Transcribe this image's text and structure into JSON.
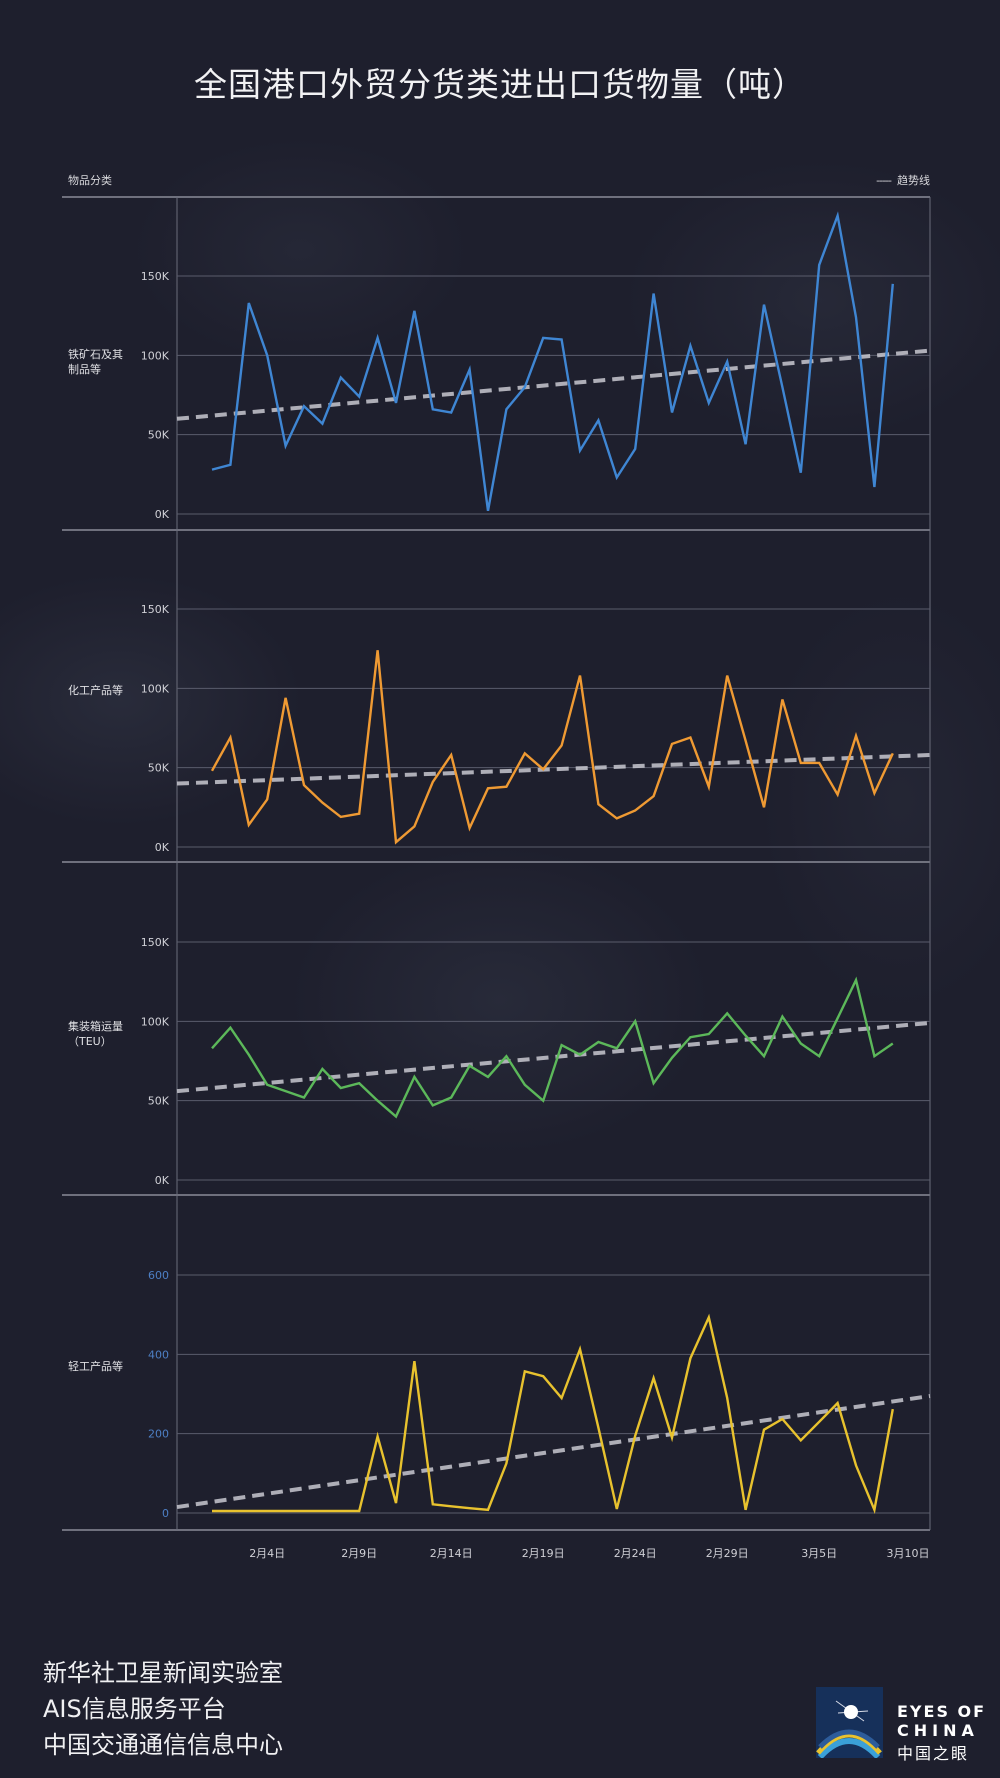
{
  "title": "全国港口外贸分货类进出口货物量（吨）",
  "header": {
    "category_label": "物品分类",
    "legend_label": "趋势线",
    "legend_swatch": "-----"
  },
  "colors": {
    "background": "#1e1f2d",
    "grid": "#5a5c6c",
    "trend": "#c8c8d0",
    "blue": "#3f86d3",
    "orange": "#ef9a33",
    "green": "#5cb85a",
    "yellow": "#e8c22e",
    "axis_label_blue": "#4d7fc4"
  },
  "chart_data": {
    "type": "line",
    "title": "全国港口外贸分货类进出口货物量（吨）",
    "x": [
      "2月1日",
      "2月2日",
      "2月3日",
      "2月4日",
      "2月5日",
      "2月6日",
      "2月7日",
      "2月8日",
      "2月9日",
      "2月10日",
      "2月11日",
      "2月12日",
      "2月13日",
      "2月14日",
      "2月15日",
      "2月16日",
      "2月17日",
      "2月18日",
      "2月19日",
      "2月20日",
      "2月21日",
      "2月22日",
      "2月23日",
      "2月24日",
      "2月25日",
      "2月26日",
      "2月27日",
      "2月28日",
      "2月29日",
      "3月1日",
      "3月2日",
      "3月3日",
      "3月4日",
      "3月5日",
      "3月6日",
      "3月7日",
      "3月8日",
      "3月9日"
    ],
    "x_tick_labels": [
      "2月4日",
      "2月9日",
      "2月14日",
      "2月19日",
      "2月24日",
      "2月29日",
      "3月5日",
      "3月10日"
    ],
    "x_tick_index": [
      3,
      8,
      13,
      18,
      23,
      28,
      33,
      38
    ],
    "legend": "top-right",
    "grid": true,
    "panels": [
      {
        "name": "铁矿石及其制品等",
        "name_lines": [
          "铁矿石及其",
          "制品等"
        ],
        "color": "#3f86d3",
        "ylim": [
          0,
          200000
        ],
        "ticks": [
          0,
          50000,
          100000,
          150000
        ],
        "tick_labels": [
          "0K",
          "50K",
          "100K",
          "150K"
        ],
        "tick_color": "light",
        "values": [
          28000,
          31000,
          133000,
          100000,
          43000,
          68000,
          57000,
          86000,
          74000,
          111000,
          70000,
          128000,
          66000,
          64000,
          91000,
          2000,
          66000,
          80000,
          111000,
          110000,
          40000,
          59000,
          23000,
          41000,
          139000,
          64000,
          106000,
          70000,
          96000,
          44000,
          132000,
          80000,
          26000,
          157000,
          188000,
          124000,
          17000,
          145000
        ],
        "trend": [
          60000,
          103000
        ]
      },
      {
        "name": "化工产品等",
        "name_lines": [
          "化工产品等"
        ],
        "color": "#ef9a33",
        "ylim": [
          0,
          200000
        ],
        "ticks": [
          0,
          50000,
          100000,
          150000
        ],
        "tick_labels": [
          "0K",
          "50K",
          "100K",
          "150K"
        ],
        "tick_color": "light",
        "values": [
          48000,
          69000,
          14000,
          30000,
          94000,
          39000,
          28000,
          19000,
          21000,
          124000,
          3000,
          13000,
          41000,
          58000,
          12000,
          37000,
          38000,
          59000,
          49000,
          64000,
          108000,
          27000,
          18000,
          23000,
          32000,
          65000,
          69000,
          38000,
          108000,
          67000,
          25000,
          93000,
          53000,
          53000,
          33000,
          70000,
          34000,
          59000
        ],
        "trend": [
          40000,
          58000
        ]
      },
      {
        "name": "集装箱运量（TEU）",
        "name_lines": [
          "集装箱运量",
          "（TEU）"
        ],
        "color": "#5cb85a",
        "ylim": [
          0,
          200000
        ],
        "ticks": [
          0,
          50000,
          100000,
          150000
        ],
        "tick_labels": [
          "0K",
          "50K",
          "100K",
          "150K"
        ],
        "tick_color": "light",
        "values": [
          83000,
          96000,
          79000,
          60000,
          56000,
          52000,
          70000,
          58000,
          61000,
          50000,
          40000,
          65000,
          47000,
          52000,
          72000,
          65000,
          78000,
          60000,
          50000,
          85000,
          79000,
          87000,
          83000,
          100000,
          61000,
          77000,
          90000,
          92000,
          105000,
          91000,
          78000,
          103000,
          86000,
          78000,
          102000,
          126000,
          78000,
          86000
        ],
        "trend": [
          56000,
          99000
        ]
      },
      {
        "name": "轻工产品等",
        "name_lines": [
          "轻工产品等"
        ],
        "color": "#e8c22e",
        "ylim": [
          0,
          800
        ],
        "ticks": [
          0,
          200,
          400,
          600
        ],
        "tick_labels": [
          "0",
          "200",
          "400",
          "600"
        ],
        "tick_color": "blue",
        "values": [
          5,
          5,
          5,
          5,
          5,
          5,
          5,
          5,
          5,
          193,
          25,
          383,
          22,
          17,
          12,
          8,
          125,
          357,
          345,
          290,
          413,
          215,
          10,
          195,
          340,
          190,
          390,
          493,
          290,
          8,
          210,
          237,
          183,
          230,
          277,
          120,
          8,
          262
        ],
        "trend": [
          15,
          295
        ]
      }
    ]
  },
  "footer": {
    "lines": [
      "新华社卫星新闻实验室",
      "AIS信息服务平台",
      "中国交通通信信息中心"
    ]
  },
  "logo": {
    "line1": "EYES OF",
    "line2": "CHINA",
    "line3": "中国之眼"
  }
}
